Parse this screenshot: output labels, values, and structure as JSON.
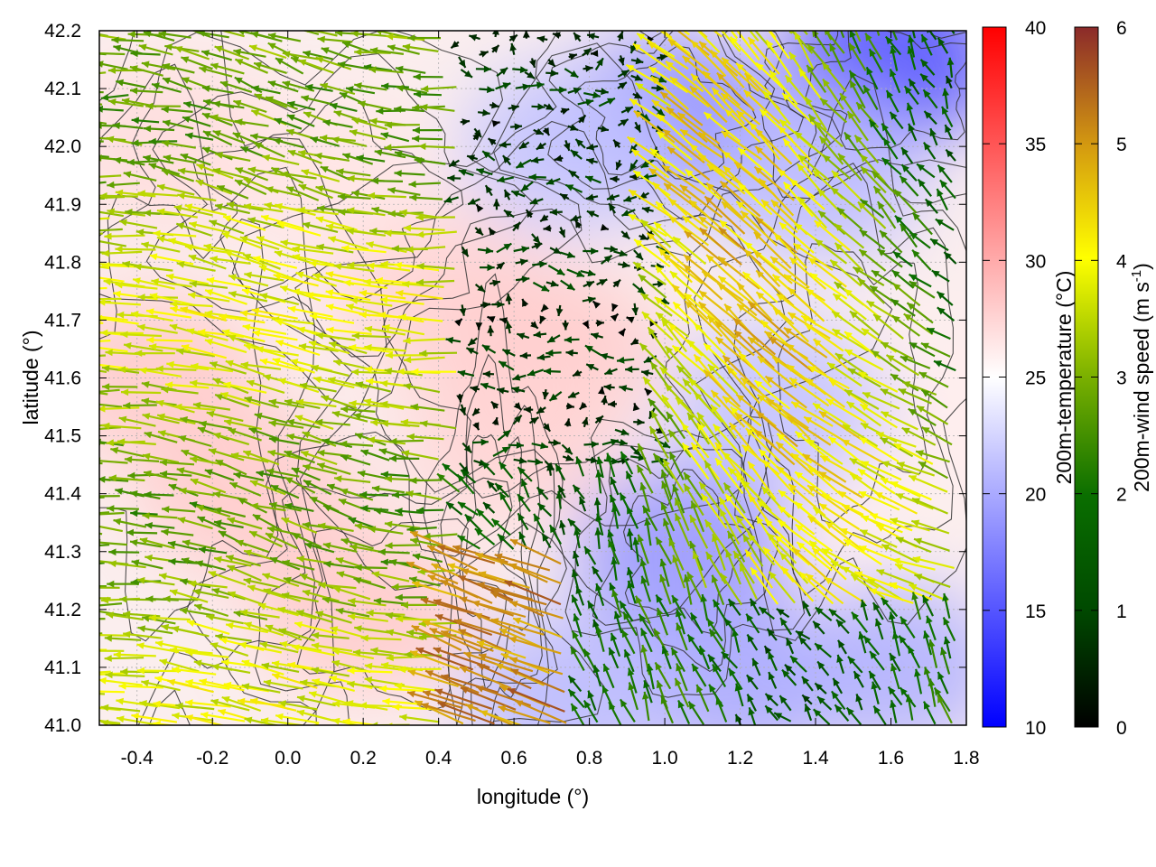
{
  "chart_data": {
    "type": "heatmap",
    "title": "",
    "xlabel": "longitude (°)",
    "ylabel": "latitude (°)",
    "xlim": [
      -0.5,
      1.8
    ],
    "ylim": [
      41.0,
      42.2
    ],
    "xticks": [
      "-0.4",
      "-0.2",
      "0.0",
      "0.2",
      "0.4",
      "0.6",
      "0.8",
      "1.0",
      "1.2",
      "1.4",
      "1.6",
      "1.8"
    ],
    "yticks": [
      "41.0",
      "41.1",
      "41.2",
      "41.3",
      "41.4",
      "41.5",
      "41.6",
      "41.7",
      "41.8",
      "41.9",
      "42.0",
      "42.1",
      "42.2"
    ],
    "grid": true,
    "temperature_colorbar": {
      "label": "200m-temperature (°C)",
      "range": [
        10,
        40
      ],
      "ticks": [
        "10",
        "15",
        "20",
        "25",
        "30",
        "35",
        "40"
      ],
      "colors": [
        "#0000ff",
        "#ffffff",
        "#ff0000"
      ]
    },
    "wind_colorbar": {
      "label_main": "200m-wind speed (m s",
      "label_sup": "-1",
      "label_end": ")",
      "range": [
        0,
        6
      ],
      "ticks": [
        "0",
        "1",
        "2",
        "3",
        "4",
        "5",
        "6"
      ],
      "colors": [
        "#000000",
        "#006400",
        "#3c8c00",
        "#9ac800",
        "#ffff00",
        "#d2a000",
        "#8b2a2a"
      ]
    },
    "warm_regions": [
      {
        "lon": -0.35,
        "lat": 41.6,
        "temp": 28
      },
      {
        "lon": -0.1,
        "lat": 41.4,
        "temp": 28
      },
      {
        "lon": 0.2,
        "lat": 41.2,
        "temp": 28
      },
      {
        "lon": 0.4,
        "lat": 41.75,
        "temp": 27.5
      },
      {
        "lon": 0.7,
        "lat": 41.65,
        "temp": 28
      },
      {
        "lon": 0.6,
        "lat": 41.5,
        "temp": 27.5
      },
      {
        "lon": -0.3,
        "lat": 42.0,
        "temp": 27
      },
      {
        "lon": 0.1,
        "lat": 41.95,
        "temp": 26.5
      },
      {
        "lon": 1.3,
        "lat": 41.35,
        "temp": 26
      },
      {
        "lon": 1.7,
        "lat": 41.55,
        "temp": 26
      }
    ],
    "cool_regions": [
      {
        "lon": 1.0,
        "lat": 42.05,
        "temp": 18
      },
      {
        "lon": 1.6,
        "lat": 42.15,
        "temp": 15
      },
      {
        "lon": 1.4,
        "lat": 41.95,
        "temp": 21
      },
      {
        "lon": 1.05,
        "lat": 41.3,
        "temp": 19
      },
      {
        "lon": 1.2,
        "lat": 41.08,
        "temp": 20
      },
      {
        "lon": 1.6,
        "lat": 41.1,
        "temp": 20.5
      },
      {
        "lon": 0.75,
        "lat": 41.05,
        "temp": 21
      },
      {
        "lon": 1.3,
        "lat": 41.55,
        "temp": 21.5
      },
      {
        "lon": 0.75,
        "lat": 42.0,
        "temp": 21.5
      }
    ]
  }
}
